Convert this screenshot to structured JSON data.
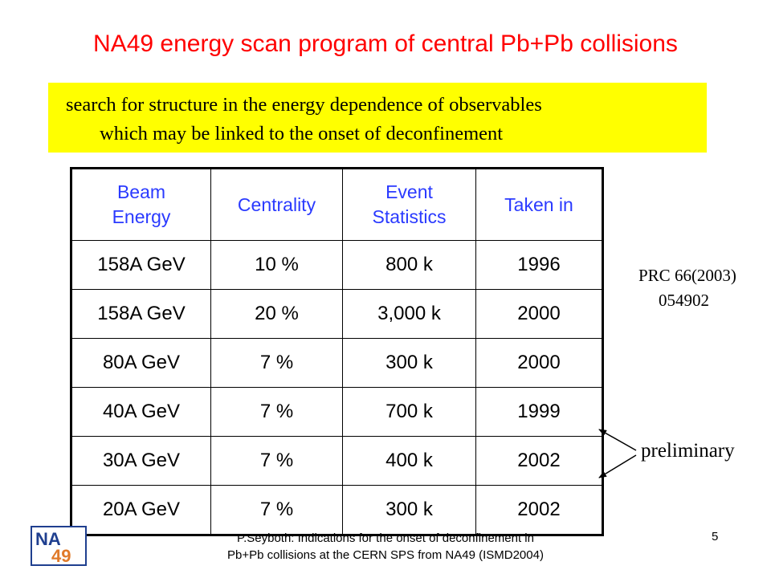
{
  "slide": {
    "title": "NA49 energy scan program of central Pb+Pb collisions",
    "banner_line1": "search for structure in the energy dependence of observables",
    "banner_line2": "which may be linked to the onset of deconfinement"
  },
  "table": {
    "headers": {
      "beam_energy": [
        "Beam",
        "Energy"
      ],
      "centrality": "Centrality",
      "event_statistics": [
        "Event",
        "Statistics"
      ],
      "taken_in": "Taken in"
    },
    "rows": [
      [
        "158A GeV",
        "10 %",
        "800 k",
        "1996"
      ],
      [
        "158A GeV",
        "20 %",
        "3,000 k",
        "2000"
      ],
      [
        "80A GeV",
        "7 %",
        "300 k",
        "2000"
      ],
      [
        "40A GeV",
        "7 %",
        "700 k",
        "1999"
      ],
      [
        "30A GeV",
        "7 %",
        "400 k",
        "2002"
      ],
      [
        "20A GeV",
        "7 %",
        "300 k",
        "2002"
      ]
    ]
  },
  "annotations": {
    "reference_line1": "PRC 66(2003)",
    "reference_line2": "054902",
    "preliminary": "preliminary"
  },
  "footer": {
    "line1": "P.Seyboth: Indications for the onset of deconfinement in",
    "line2": "Pb+Pb collisions at the CERN SPS from NA49   (ISMD2004)",
    "page_number": "5",
    "logo_text_top": "NA",
    "logo_text_bottom": "49"
  },
  "colors": {
    "title": "#ff0000",
    "banner": "#ffff00",
    "header_text": "#2a3aff",
    "logo_blue": "#1f3f8f",
    "logo_orange": "#e07a2a"
  }
}
